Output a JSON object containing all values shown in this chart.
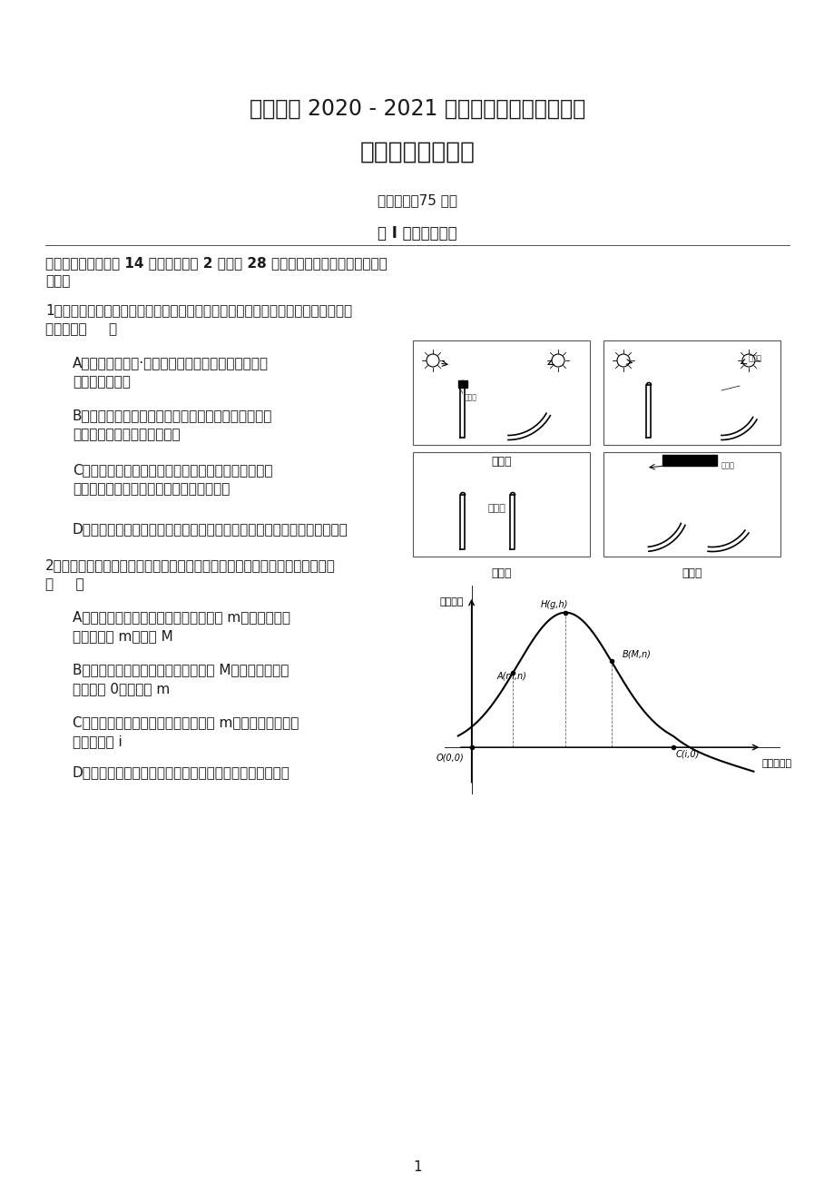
{
  "bg_color": "#ffffff",
  "title1": "石首一中 2020 - 2021 学年第一学期十二月月考",
  "title2": "高二年级生物试题",
  "subtitle": "考试时间：75 分钟",
  "section1": "第 I 卷（选择题）",
  "page_num": "1",
  "graph_ylabel": "促进作用",
  "graph_xlabel": "生长素浓度"
}
